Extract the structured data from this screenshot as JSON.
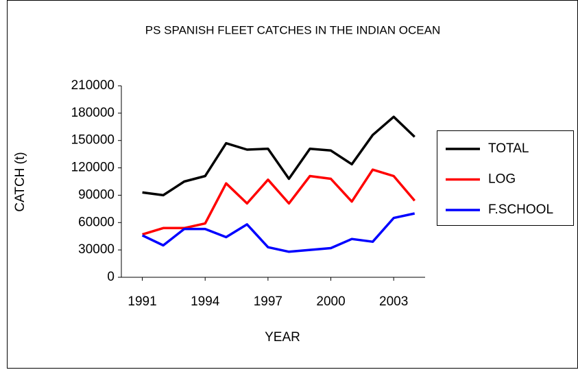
{
  "chart_data": {
    "type": "line",
    "title": "PS SPANISH FLEET CATCHES IN THE INDIAN OCEAN",
    "x_label": "YEAR",
    "y_label": "CATCH (t)",
    "x": [
      1991,
      1992,
      1993,
      1994,
      1995,
      1996,
      1997,
      1998,
      1999,
      2000,
      2001,
      2002,
      2003,
      2004
    ],
    "series": [
      {
        "name": "TOTAL",
        "color": "#000000",
        "values": [
          93000,
          90000,
          105000,
          111000,
          147000,
          140000,
          141000,
          108000,
          141000,
          139000,
          124000,
          156000,
          176000,
          154000
        ]
      },
      {
        "name": "LOG",
        "color": "#ff0000",
        "values": [
          47000,
          54000,
          54000,
          59000,
          103000,
          81000,
          107000,
          81000,
          111000,
          108000,
          83000,
          118000,
          111000,
          84000
        ]
      },
      {
        "name": "F.SCHOOL",
        "color": "#0000ff",
        "values": [
          46000,
          35000,
          53000,
          53000,
          44000,
          58000,
          33000,
          28000,
          30000,
          32000,
          42000,
          39000,
          65000,
          70000
        ]
      }
    ],
    "xlim": [
      1990,
      2004.5
    ],
    "xticks": [
      1991,
      1994,
      1997,
      2000,
      2003
    ],
    "ylim": [
      0,
      210000
    ],
    "yticks": [
      0,
      30000,
      60000,
      90000,
      120000,
      150000,
      180000,
      210000
    ],
    "grid": false,
    "legend": "right"
  }
}
